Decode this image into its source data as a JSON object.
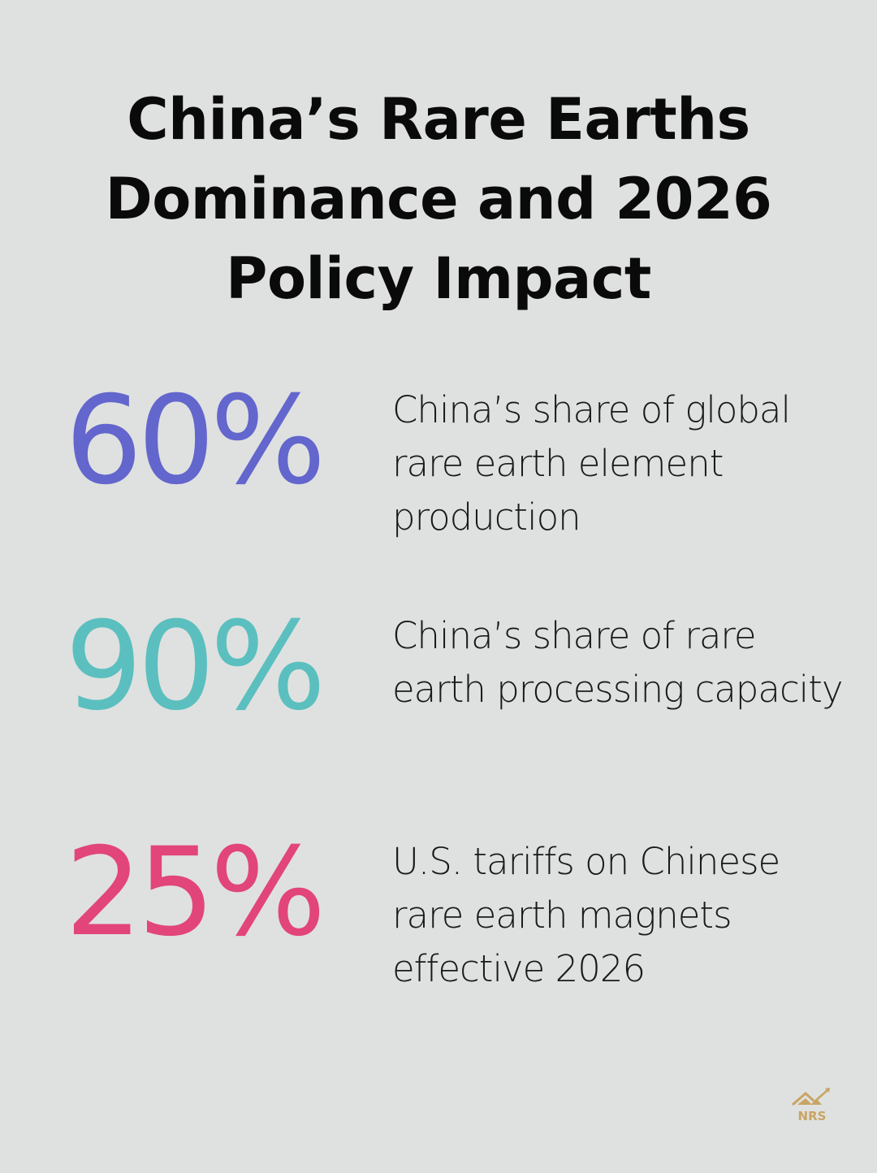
{
  "title": "China’s Rare Earths Dominance and 2026 Policy Impact",
  "stats": [
    {
      "value": "60%",
      "description": "China’s share of global rare earth element production",
      "color": "#6366cc"
    },
    {
      "value": "90%",
      "description": "China’s share of rare earth processing capacity",
      "color": "#5bbfbf"
    },
    {
      "value": "25%",
      "description": "U.S. tariffs on Chinese rare earth magnets effective 2026",
      "color": "#e2457a"
    }
  ],
  "logo": {
    "text": "NRS",
    "color": "#c9a463"
  }
}
